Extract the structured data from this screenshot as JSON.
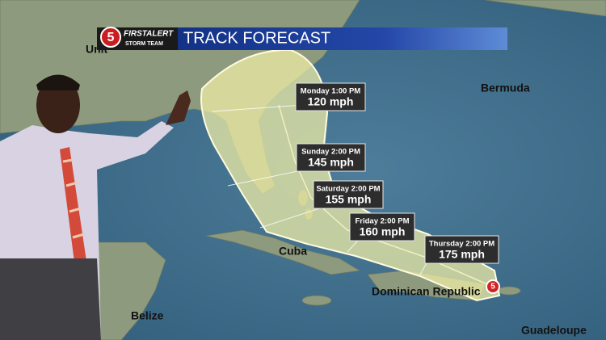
{
  "header": {
    "logo": "5",
    "brand": "FIRSTALERT",
    "team": "STORM TEAM",
    "title": "TRACK FORECAST"
  },
  "places": {
    "us": "Unit",
    "bermuda": "Bermuda",
    "cuba": "Cuba",
    "belize": "Belize",
    "dominican": "Dominican Republic",
    "guadeloupe": "Guadeloupe"
  },
  "forecasts": [
    {
      "when": "Monday 1:00 PM",
      "wind": "120 mph"
    },
    {
      "when": "Sunday 2:00 PM",
      "wind": "145 mph"
    },
    {
      "when": "Saturday 2:00 PM",
      "wind": "155 mph"
    },
    {
      "when": "Friday 2:00 PM",
      "wind": "160 mph"
    },
    {
      "when": "Thursday 2:00 PM",
      "wind": "175 mph"
    }
  ],
  "storm_icon": "5"
}
